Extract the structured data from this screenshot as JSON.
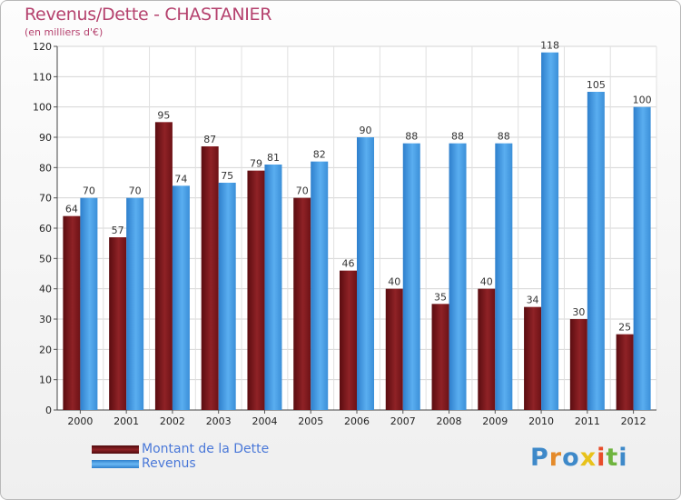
{
  "title": "Revenus/Dette - CHASTANIER",
  "subtitle": "(en milliers d'€)",
  "logo": {
    "text": "Proxiti",
    "colors": [
      "#3e89c9",
      "#e48a2a",
      "#3e89c9",
      "#e8c21b",
      "#e84c2a",
      "#6fb43f",
      "#3e89c9"
    ]
  },
  "chart_data": {
    "type": "bar",
    "title": "Revenus/Dette - CHASTANIER",
    "subtitle": "(en milliers d'€)",
    "xlabel": "",
    "ylabel": "",
    "categories": [
      "2000",
      "2001",
      "2002",
      "2003",
      "2004",
      "2005",
      "2006",
      "2007",
      "2008",
      "2009",
      "2010",
      "2011",
      "2012"
    ],
    "series": [
      {
        "name": "Montant de la Dette",
        "color": "#7d1518",
        "values": [
          64,
          57,
          95,
          87,
          79,
          70,
          46,
          40,
          35,
          40,
          34,
          30,
          25
        ]
      },
      {
        "name": "Revenus",
        "color": "#4a9fe3",
        "values": [
          70,
          70,
          74,
          75,
          81,
          82,
          90,
          88,
          88,
          88,
          118,
          105,
          100
        ]
      }
    ],
    "ylim": [
      0,
      120
    ],
    "yticks": [
      0,
      10,
      20,
      30,
      40,
      50,
      60,
      70,
      80,
      90,
      100,
      110,
      120
    ],
    "grid": true,
    "legend": "bottom-left"
  }
}
